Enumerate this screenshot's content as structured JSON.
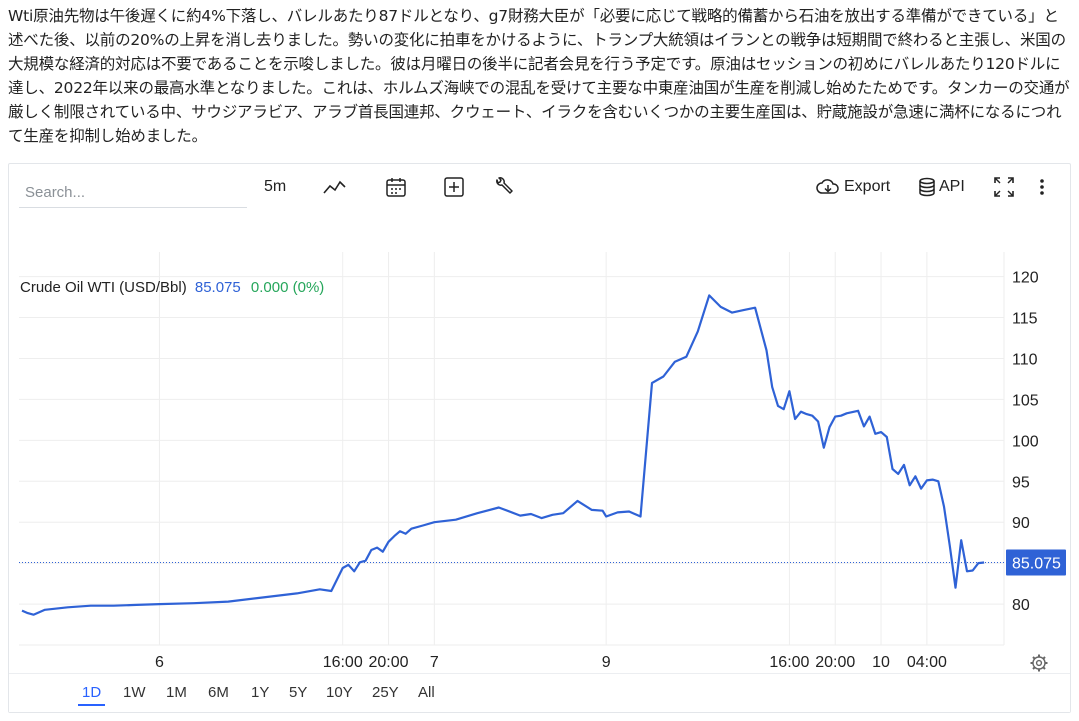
{
  "article": {
    "text": "Wti原油先物は午後遅くに約4%下落し、バレルあたり87ドルとなり、g7財務大臣が「必要に応じて戦略的備蓄から石油を放出する準備ができている」と述べた後、以前の20%の上昇を消し去りました。勢いの変化に拍車をかけるように、トランプ大統領はイランとの戦争は短期間で終わると主張し、米国の大規模な経済的対応は不要であることを示唆しました。彼は月曜日の後半に記者会見を行う予定です。原油はセッションの初めにバレルあたり120ドルに達し、2022年以来の最高水準となりました。これは、ホルムズ海峡での混乱を受けて主要な中東産油国が生産を削減し始めたためです。タンカーの交通が厳しく制限されている中、サウジアラビア、アラブ首長国連邦、クウェート、イラクを含むいくつかの主要生産国は、貯蔵施設が急速に満杯になるにつれて生産を抑制し始めました。"
  },
  "toolbar": {
    "search_placeholder": "Search...",
    "interval": "5m",
    "export_label": "Export",
    "api_label": "API"
  },
  "colors": {
    "line": "#2f62d6",
    "price_label_bg": "#2f62d6",
    "change_positive": "#26a65b",
    "grid": "#eeeeee",
    "range_active": "#2962ff"
  },
  "chart_data": {
    "type": "line",
    "title": "Crude Oil WTI (USD/Bbl)",
    "last_value": "85.075",
    "change": "0.000 (0%)",
    "ylim": [
      75,
      123
    ],
    "y_ticks": [
      80,
      85,
      90,
      95,
      100,
      105,
      110,
      115,
      120
    ],
    "y_tick_labels": [
      "80",
      "85",
      "90",
      "95",
      "100",
      "105",
      "110",
      "115",
      "120"
    ],
    "x_range": [
      "2026-03-05T12:00",
      "2026-03-10T09:15"
    ],
    "x_ticks": [
      {
        "x": "2026-03-06T00:00",
        "label": "6"
      },
      {
        "x": "2026-03-06T16:00",
        "label": "16:00"
      },
      {
        "x": "2026-03-06T20:00",
        "label": "20:00"
      },
      {
        "x": "2026-03-07T00:00",
        "label": "7"
      },
      {
        "x": "2026-03-09T00:00",
        "label": "9"
      },
      {
        "x": "2026-03-09T16:00",
        "label": "16:00"
      },
      {
        "x": "2026-03-09T20:00",
        "label": "20:00"
      },
      {
        "x": "2026-03-10T00:00",
        "label": "10"
      },
      {
        "x": "2026-03-10T04:00",
        "label": "04:00"
      }
    ],
    "series": [
      {
        "x": [
          "2026-03-05T12:00",
          "2026-03-05T12:30",
          "2026-03-05T13:00",
          "2026-03-05T14:00",
          "2026-03-05T16:00",
          "2026-03-05T18:00",
          "2026-03-05T20:00",
          "2026-03-05T22:00",
          "2026-03-06T00:00",
          "2026-03-06T03:00",
          "2026-03-06T06:00",
          "2026-03-06T09:00",
          "2026-03-06T12:00",
          "2026-03-06T14:00",
          "2026-03-06T15:00",
          "2026-03-06T16:00",
          "2026-03-06T16:30",
          "2026-03-06T17:00",
          "2026-03-06T17:30",
          "2026-03-06T18:00",
          "2026-03-06T18:30",
          "2026-03-06T19:00",
          "2026-03-06T19:30",
          "2026-03-06T20:00",
          "2026-03-06T20:30",
          "2026-03-06T21:00",
          "2026-03-06T21:30",
          "2026-03-06T22:00",
          "2026-03-06T23:00",
          "2026-03-07T00:00",
          "2026-03-07T06:00",
          "2026-03-07T12:00",
          "2026-03-07T18:00",
          "2026-03-08T00:00",
          "2026-03-08T03:00",
          "2026-03-08T06:00",
          "2026-03-08T09:00",
          "2026-03-08T12:00",
          "2026-03-08T16:00",
          "2026-03-08T20:00",
          "2026-03-08T23:00",
          "2026-03-09T00:00",
          "2026-03-09T01:00",
          "2026-03-09T02:00",
          "2026-03-09T03:00",
          "2026-03-09T04:00",
          "2026-03-09T05:00",
          "2026-03-09T06:00",
          "2026-03-09T07:00",
          "2026-03-09T08:00",
          "2026-03-09T09:00",
          "2026-03-09T10:00",
          "2026-03-09T11:00",
          "2026-03-09T12:00",
          "2026-03-09T13:00",
          "2026-03-09T14:00",
          "2026-03-09T14:30",
          "2026-03-09T15:00",
          "2026-03-09T15:30",
          "2026-03-09T16:00",
          "2026-03-09T16:30",
          "2026-03-09T17:00",
          "2026-03-09T17:30",
          "2026-03-09T18:00",
          "2026-03-09T18:30",
          "2026-03-09T19:00",
          "2026-03-09T19:30",
          "2026-03-09T20:00",
          "2026-03-09T20:30",
          "2026-03-09T21:00",
          "2026-03-09T22:00",
          "2026-03-09T22:30",
          "2026-03-09T23:00",
          "2026-03-09T23:30",
          "2026-03-10T00:00",
          "2026-03-10T00:30",
          "2026-03-10T01:00",
          "2026-03-10T01:30",
          "2026-03-10T02:00",
          "2026-03-10T02:30",
          "2026-03-10T03:00",
          "2026-03-10T03:30",
          "2026-03-10T04:00",
          "2026-03-10T04:30",
          "2026-03-10T05:00",
          "2026-03-10T05:30",
          "2026-03-10T06:00",
          "2026-03-10T06:30",
          "2026-03-10T07:00",
          "2026-03-10T07:30",
          "2026-03-10T08:00",
          "2026-03-10T08:30",
          "2026-03-10T09:00"
        ],
        "y": [
          79.2,
          78.9,
          78.7,
          79.3,
          79.6,
          79.8,
          79.8,
          79.9,
          80.0,
          80.1,
          80.3,
          80.8,
          81.3,
          81.8,
          81.6,
          84.4,
          84.8,
          84.0,
          85.1,
          85.3,
          86.6,
          86.9,
          86.4,
          87.6,
          88.3,
          88.9,
          88.6,
          89.2,
          89.6,
          90.0,
          90.3,
          91.1,
          91.8,
          90.8,
          91.0,
          90.5,
          90.9,
          91.1,
          92.6,
          91.5,
          91.4,
          90.7,
          91.2,
          91.3,
          90.7,
          107.0,
          107.8,
          109.6,
          110.2,
          113.3,
          117.7,
          116.3,
          115.6,
          115.9,
          116.2,
          111.0,
          106.5,
          104.2,
          103.8,
          106.0,
          102.6,
          103.5,
          103.2,
          103.0,
          102.3,
          99.1,
          101.6,
          102.9,
          103.0,
          103.3,
          103.6,
          101.7,
          102.9,
          100.8,
          101.0,
          100.4,
          96.5,
          95.9,
          97.0,
          94.5,
          95.6,
          94.1,
          95.1,
          95.2,
          95.0,
          91.9,
          87.1,
          82.0,
          87.8,
          84.0,
          84.1,
          85.0,
          85.075
        ]
      }
    ]
  },
  "price_axis": {
    "last_price_label": "85.075"
  },
  "ranges": {
    "items": [
      "1D",
      "1W",
      "1M",
      "6M",
      "1Y",
      "5Y",
      "10Y",
      "25Y",
      "All"
    ],
    "active": "1D"
  }
}
